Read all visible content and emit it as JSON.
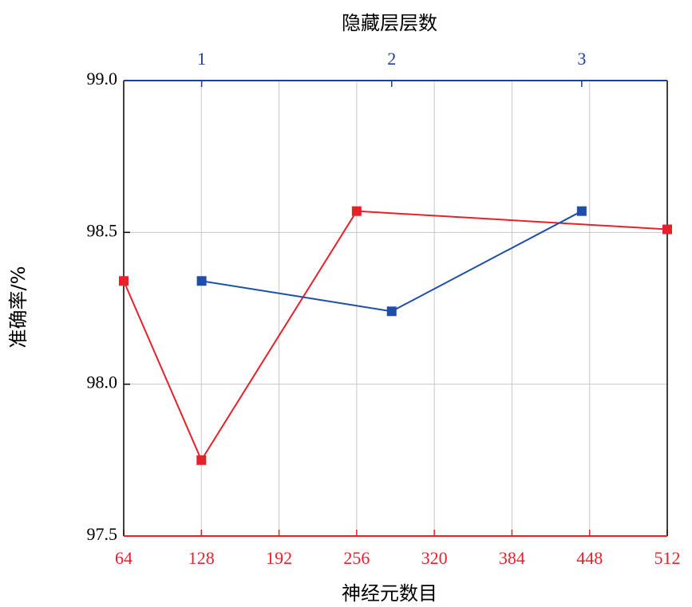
{
  "chart_data": {
    "type": "line",
    "x_label": "神经元数目",
    "x2_label": "隐藏层层数",
    "y_label": "准确率/%",
    "xlim": [
      64,
      512
    ],
    "xticks": [
      64,
      128,
      192,
      256,
      320,
      384,
      448,
      512
    ],
    "x2lim": [
      0.59,
      3.45
    ],
    "x2ticks": [
      1,
      2,
      3
    ],
    "ylim": [
      97.5,
      99.0
    ],
    "yticks": [
      97.5,
      {
        "value": 98.0,
        "label": "98.0"
      },
      98.5,
      {
        "value": 99.0,
        "label": "99.0"
      }
    ],
    "grid": true,
    "x_color": "#e8202a",
    "x2_color": "#1f3f99",
    "series": [
      {
        "color": "#e8202a",
        "axis": "x",
        "x": [
          64,
          128,
          256,
          512
        ],
        "values": [
          98.34,
          97.75,
          98.57,
          98.51
        ]
      },
      {
        "color": "#1f4ea8",
        "axis": "x2",
        "x": [
          1,
          2,
          3
        ],
        "values": [
          98.34,
          98.24,
          98.57
        ]
      }
    ]
  }
}
